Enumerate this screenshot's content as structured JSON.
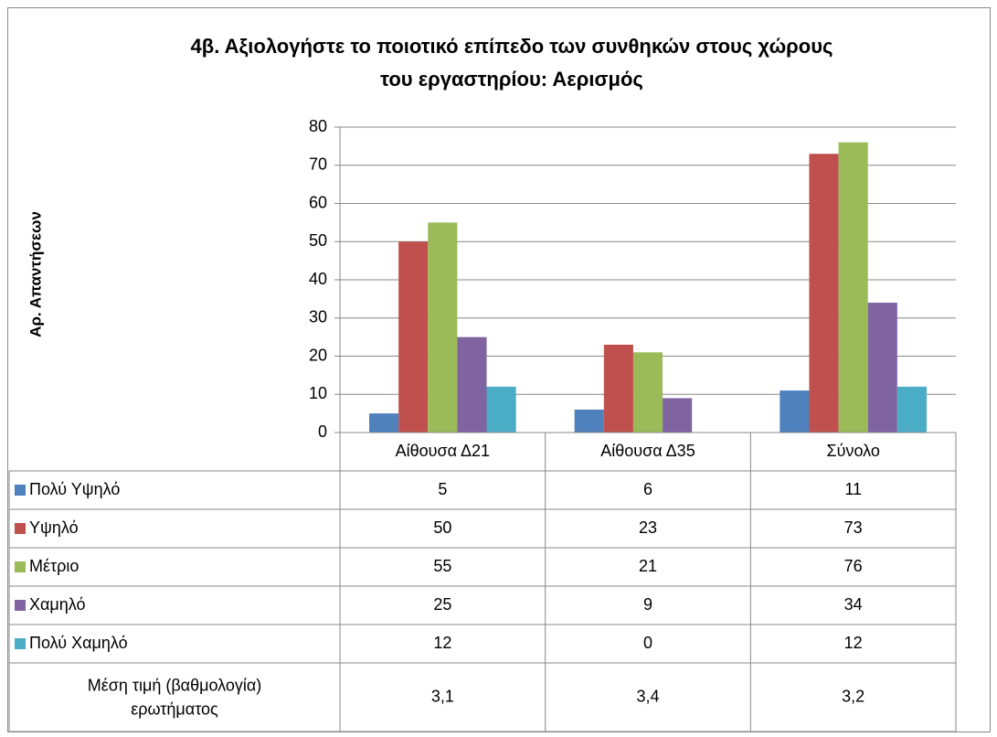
{
  "chart_data": {
    "type": "bar",
    "title": [
      "4β. Αξιολογήστε το ποιοτικό επίπεδο των συνθηκών στους χώρους",
      "του εργαστηρίου: Αερισμός"
    ],
    "y_label": "Αρ. Απαντήσεων",
    "categories": [
      "Αίθουσα Δ21",
      "Αίθουσα Δ35",
      "Σύνολο"
    ],
    "series": [
      {
        "name": "Πολύ Υψηλό",
        "color": "#4f81bd",
        "values": [
          5,
          6,
          11
        ]
      },
      {
        "name": "Υψηλό",
        "color": "#c0504d",
        "values": [
          50,
          23,
          73
        ]
      },
      {
        "name": "Μέτριο",
        "color": "#9bbb59",
        "values": [
          55,
          21,
          76
        ]
      },
      {
        "name": "Χαμηλό",
        "color": "#8064a2",
        "values": [
          25,
          9,
          34
        ]
      },
      {
        "name": "Πολύ Χαμηλό",
        "color": "#4bacc6",
        "values": [
          12,
          0,
          12
        ]
      }
    ],
    "ylim": [
      0,
      80
    ],
    "yticks": [
      0,
      10,
      20,
      30,
      40,
      50,
      60,
      70,
      80
    ],
    "grid": true,
    "extra_row": {
      "label": [
        "Μέση τιμή (βαθμολογία)",
        "ερωτήματος"
      ],
      "values": [
        "3,1",
        "3,4",
        "3,2"
      ]
    }
  }
}
